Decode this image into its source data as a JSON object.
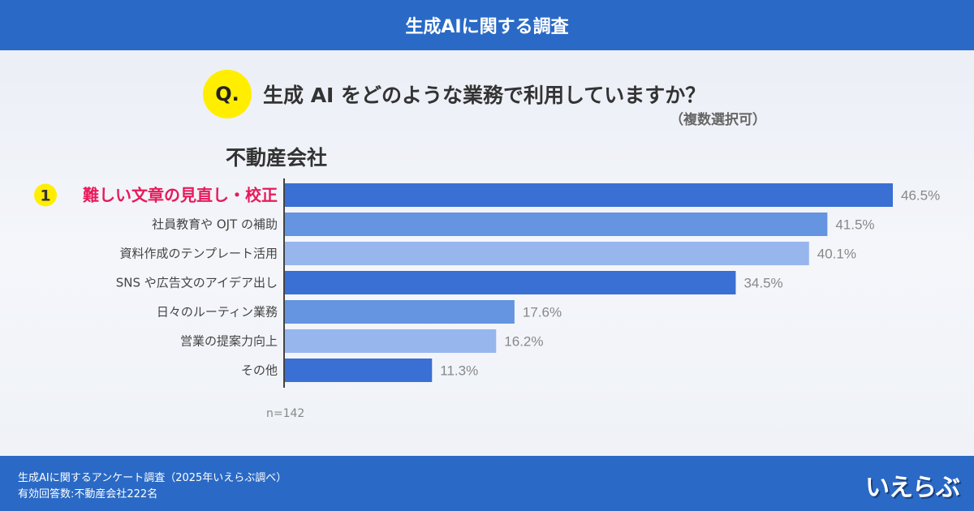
{
  "header": {
    "title": "生成AIに関する調査"
  },
  "question": {
    "badge": "Q.",
    "text": "生成 AI をどのような業務で利用していますか？",
    "note": "（複数選択可）"
  },
  "footer": {
    "line1": "生成AIに関するアンケート調査（2025年いえらぶ調べ）",
    "line2": "有効回答数:不動産会社222名",
    "logo": "いえらぶ"
  },
  "chart_data": {
    "type": "bar",
    "orientation": "horizontal",
    "title": "不動産会社",
    "categories": [
      "難しい文章の見直し・校正",
      "社員教育や OJT の補助",
      "資料作成のテンプレート活用",
      "SNS や広告文のアイデア出し",
      "日々のルーティン業務",
      "営業の提案力向上",
      "その他"
    ],
    "values": [
      46.5,
      41.5,
      40.1,
      34.5,
      17.6,
      16.2,
      11.3
    ],
    "value_labels": [
      "46.5%",
      "41.5%",
      "40.1%",
      "34.5%",
      "17.6%",
      "16.2%",
      "11.3%"
    ],
    "unit": "%",
    "rank_badge": "1",
    "sample": "n=142",
    "colors": [
      "#3a6fd4",
      "#6594e0",
      "#97b6ee",
      "#3a6fd4",
      "#6594e0",
      "#97b6ee",
      "#3a6fd4"
    ],
    "highlight_color": "#e8195a",
    "badge_color": "#ffee00",
    "xlim": [
      0,
      46.5
    ],
    "grid": false
  }
}
